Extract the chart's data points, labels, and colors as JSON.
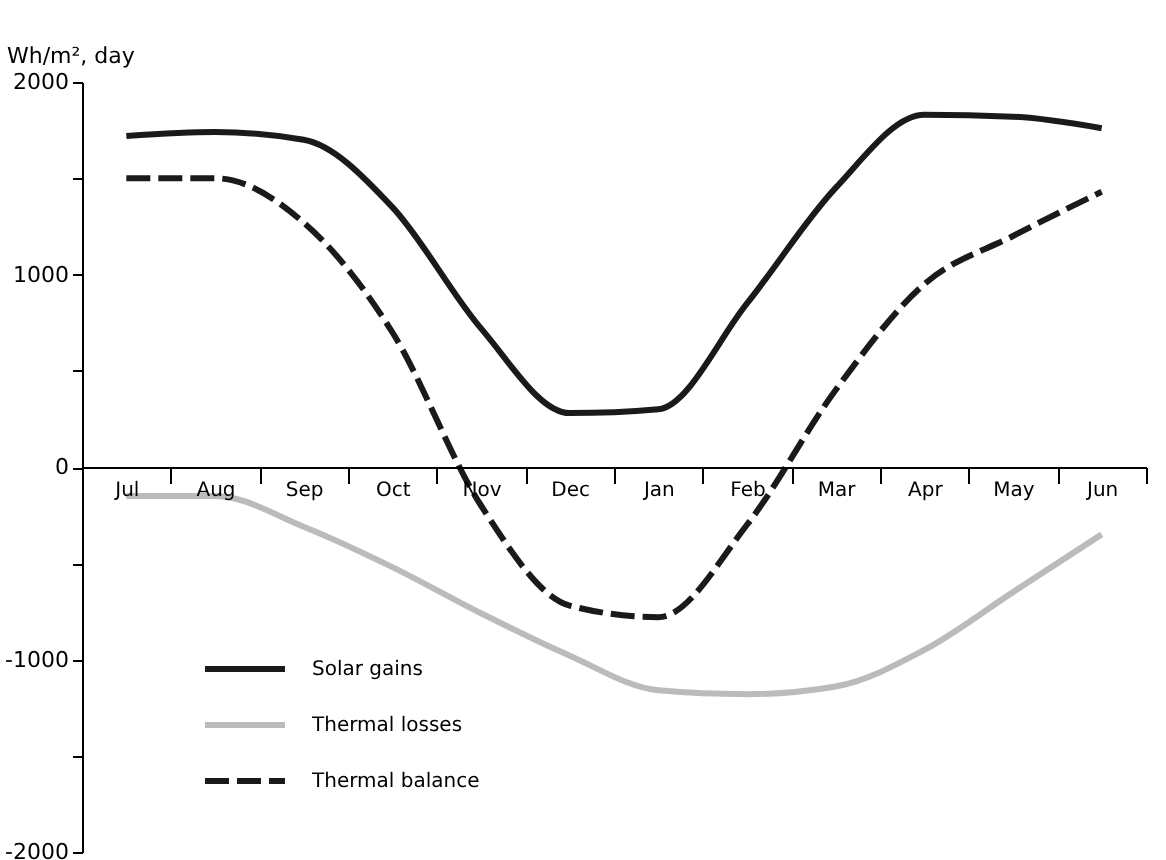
{
  "chart_data": {
    "type": "line",
    "ylabel": "Wh/m², day",
    "categories": [
      "Jul",
      "Aug",
      "Sep",
      "Oct",
      "Nov",
      "Dec",
      "Jan",
      "Feb",
      "Mar",
      "Apr",
      "May",
      "Jun"
    ],
    "ylim": [
      -2000,
      2000
    ],
    "yticks": [
      -2000,
      {
        "value": -1500,
        "label": null
      },
      -1000,
      {
        "value": -500,
        "label": null
      },
      0,
      {
        "value": 500,
        "label": null
      },
      1000,
      {
        "value": 1500,
        "label": null
      },
      2000
    ],
    "series": [
      {
        "name": "Solar gains",
        "color": "#1a1a1a",
        "values": [
          1720,
          1740,
          1700,
          1350,
          720,
          280,
          300,
          850,
          1450,
          1830,
          1820,
          1760
        ]
      },
      {
        "name": "Thermal losses",
        "color": "#bbbbbb",
        "values": [
          -150,
          -150,
          -310,
          -520,
          -760,
          -980,
          -1160,
          -1180,
          -1140,
          -950,
          -650,
          -350
        ]
      },
      {
        "name": "Thermal balance",
        "color": "#1a1a1a",
        "line_style": "dashed",
        "values": [
          1500,
          1500,
          1270,
          700,
          -200,
          -720,
          -780,
          -300,
          400,
          950,
          1200,
          1430
        ]
      }
    ],
    "legend": "bottom left",
    "grid": false,
    "marker": "none"
  }
}
